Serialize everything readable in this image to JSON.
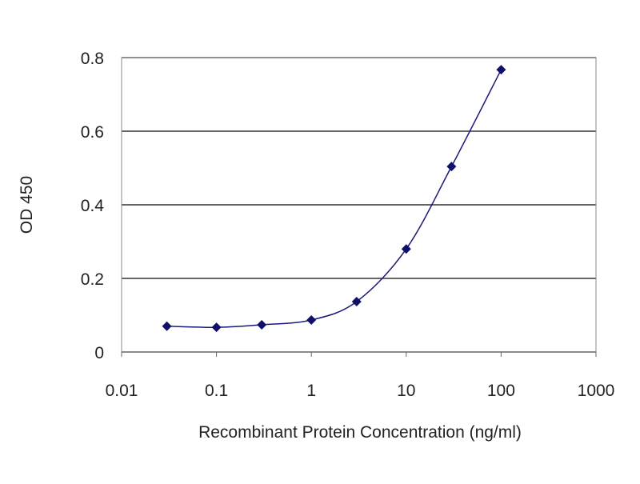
{
  "chart_data": {
    "type": "line",
    "title": "",
    "xlabel": "Recombinant Protein Concentration (ng/ml)",
    "ylabel": "OD 450",
    "xscale": "log",
    "xlim": [
      0.01,
      1000
    ],
    "ylim": [
      0,
      0.8
    ],
    "xticks": [
      0.01,
      0.1,
      1,
      10,
      100,
      1000
    ],
    "xtick_labels": [
      "0.01",
      "0.1",
      "1",
      "10",
      "100",
      "1000"
    ],
    "yticks": [
      0,
      0.2,
      0.4,
      0.6,
      0.8
    ],
    "ytick_labels": [
      "0",
      "0.2",
      "0.4",
      "0.6",
      "0.8"
    ],
    "grid": "horizontal",
    "legend": "none",
    "series": [
      {
        "x": [
          0.03,
          0.1,
          0.3,
          1,
          3,
          10,
          30,
          100
        ],
        "y": [
          0.07,
          0.067,
          0.074,
          0.087,
          0.137,
          0.28,
          0.504,
          0.767
        ],
        "color": "#1a1a7a",
        "marker": "diamond",
        "smooth": true
      }
    ]
  }
}
